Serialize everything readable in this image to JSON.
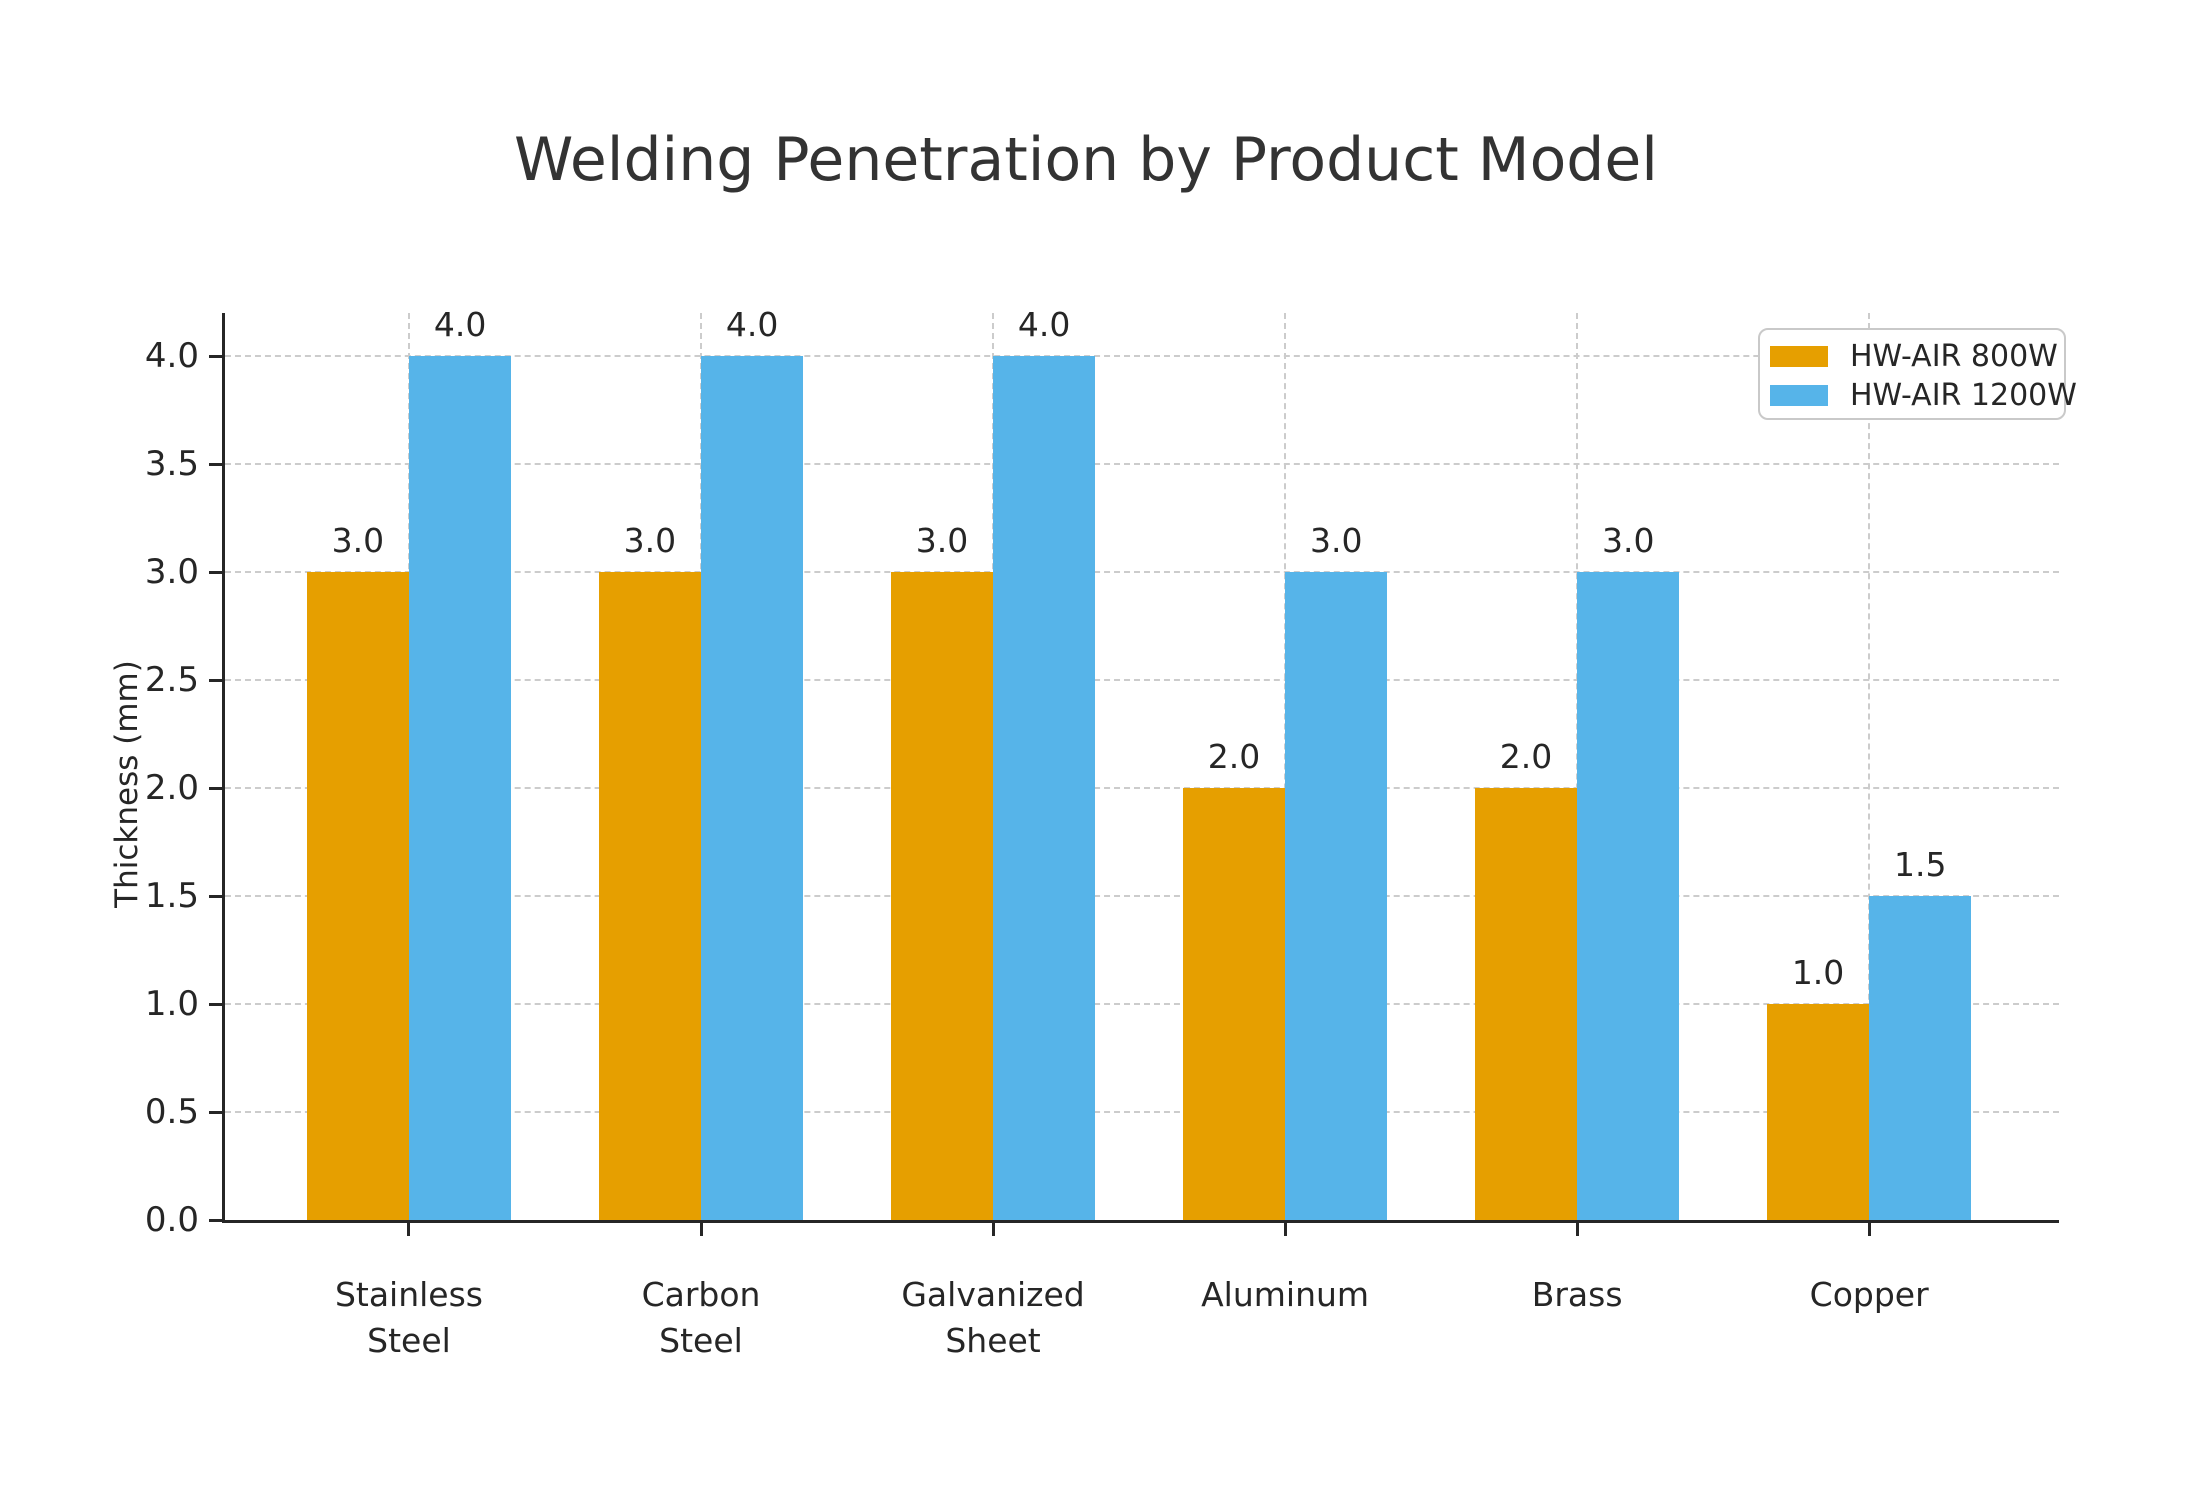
{
  "chart_data": {
    "type": "bar",
    "title": "Welding Penetration by Product Model",
    "ylabel": "Thickness (mm)",
    "xlabel": "",
    "categories": [
      "Stainless\nSteel",
      "Carbon\nSteel",
      "Galvanized\nSheet",
      "Aluminum",
      "Brass",
      "Copper"
    ],
    "series": [
      {
        "name": "HW-AIR 800W",
        "color": "#E69F00",
        "values": [
          3.0,
          3.0,
          3.0,
          2.0,
          2.0,
          1.0
        ]
      },
      {
        "name": "HW-AIR 1200W",
        "color": "#56B4E9",
        "values": [
          4.0,
          4.0,
          4.0,
          3.0,
          3.0,
          1.5
        ]
      }
    ],
    "ylim": [
      0,
      4.2
    ],
    "yticks": [
      0.0,
      0.5,
      1.0,
      1.5,
      2.0,
      2.5,
      3.0,
      3.5,
      4.0
    ],
    "grid": true,
    "grid_style": "dashed",
    "grid_color": "#cccccc",
    "legend_position": "upper right",
    "value_labels": true,
    "value_label_format": "one-decimal",
    "text_color": "#262626",
    "title_color": "#333333"
  }
}
